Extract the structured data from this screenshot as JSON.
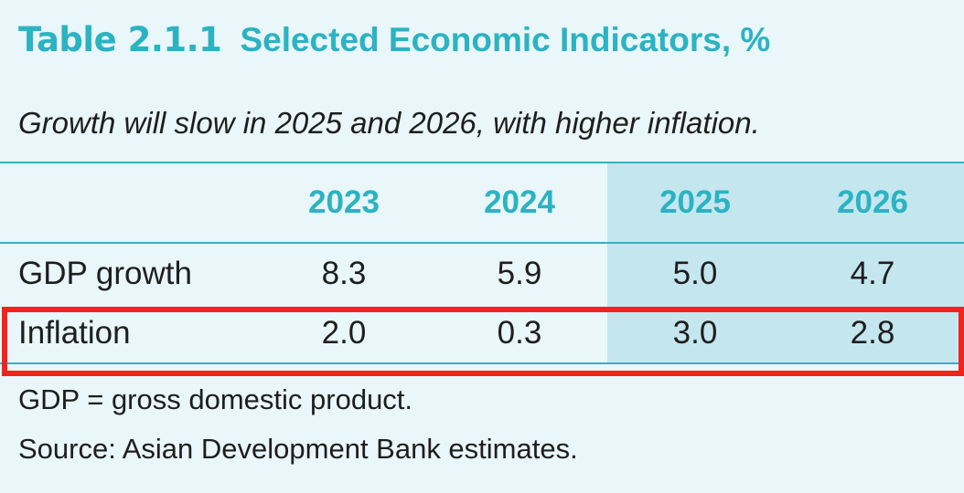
{
  "table": {
    "number": "Table 2.1.1",
    "title": "Selected Economic Indicators, %",
    "subtitle": "Growth will slow in 2025 and 2026, with higher inflation.",
    "years": [
      "2023",
      "2024",
      "2025",
      "2026"
    ],
    "rows": [
      {
        "label": "GDP growth",
        "values": [
          "8.3",
          "5.9",
          "5.0",
          "4.7"
        ]
      },
      {
        "label": "Inflation",
        "values": [
          "2.0",
          "0.3",
          "3.0",
          "2.8"
        ]
      }
    ],
    "notes": [
      "GDP = gross domestic product.",
      "Source: Asian Development Bank estimates."
    ]
  },
  "colors": {
    "accent_teal": "#2bb3c2",
    "background": "#e9f6fa",
    "projection_shade": "#c4e6ee",
    "highlight_red": "#f2231b",
    "text": "#1e1e1e"
  },
  "highlighted_row": "Inflation"
}
